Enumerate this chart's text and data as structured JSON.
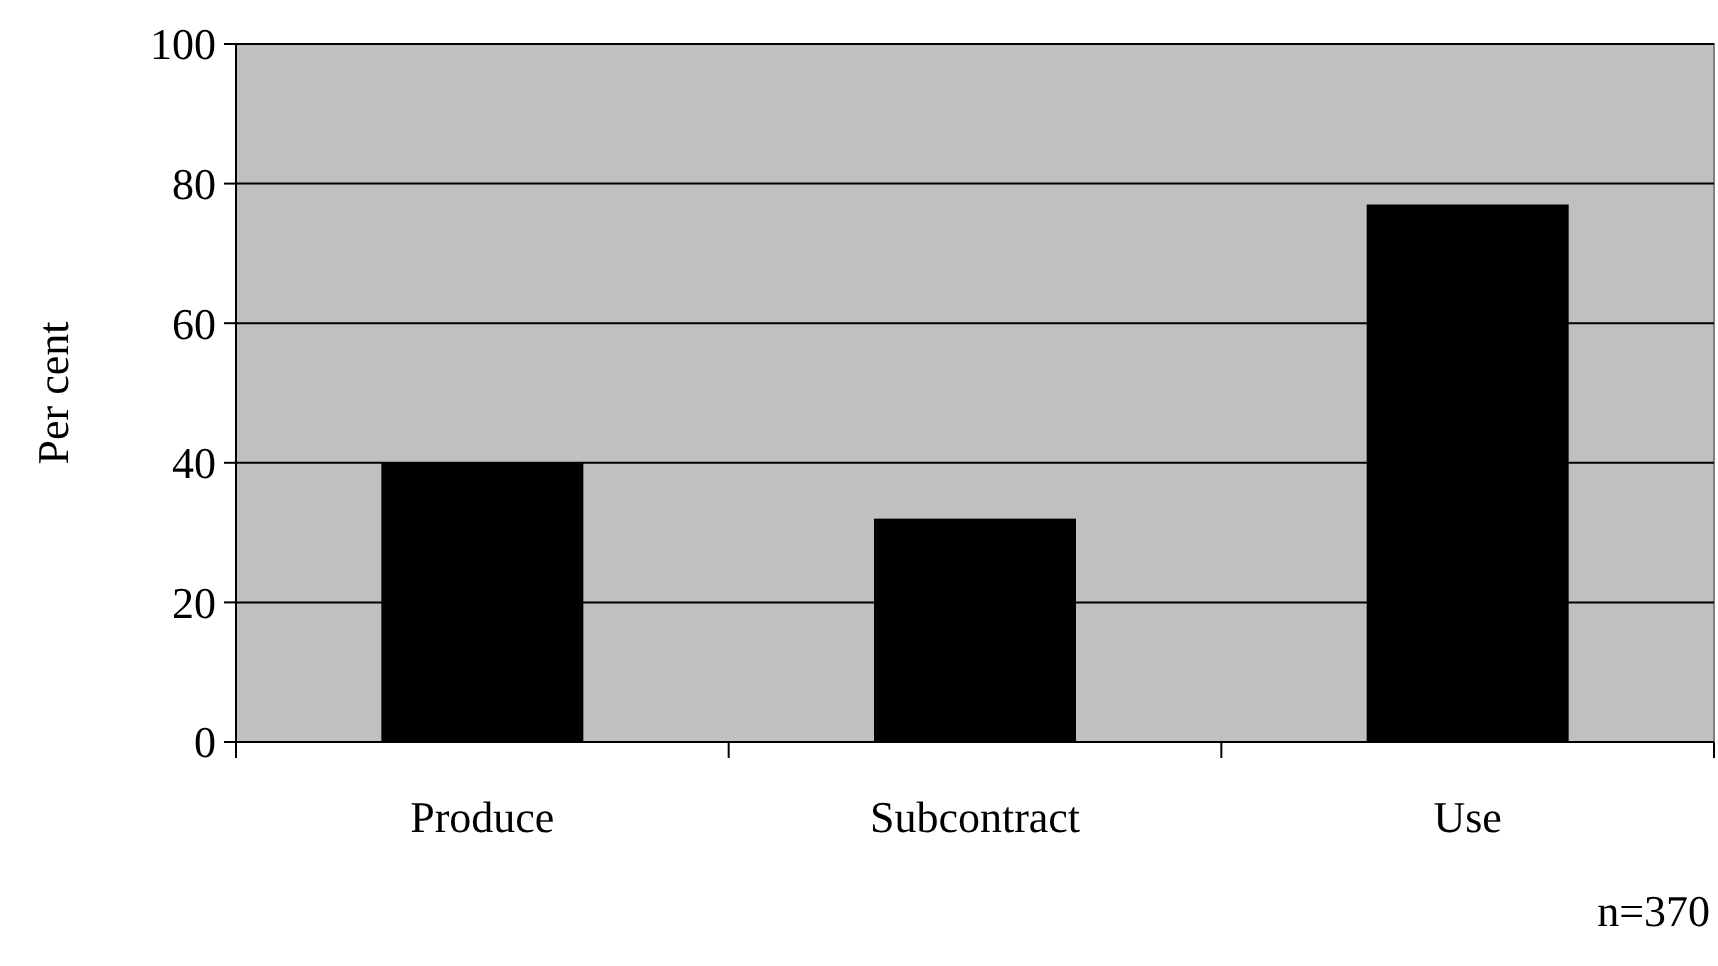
{
  "chart_data": {
    "type": "bar",
    "ylabel": "Per cent",
    "categories": [
      "Produce",
      "Subcontract",
      "Use"
    ],
    "values": [
      40,
      32,
      77
    ],
    "color": "#000000",
    "ylim": [
      0,
      100
    ],
    "yticks": [
      0,
      20,
      40,
      60,
      80,
      100
    ],
    "grid": "y",
    "annotations": [
      "n=370"
    ]
  }
}
